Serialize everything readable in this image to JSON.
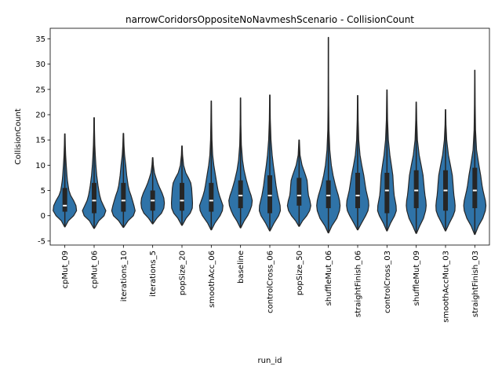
{
  "chart_data": {
    "type": "violin",
    "title": "narrowCoridorsOppositeNoNavmeshScenario - CollisionCount",
    "xlabel": "run_id",
    "ylabel": "CollisionCount",
    "ylim": [
      -5.8,
      37.1
    ],
    "yticks": [
      -5,
      0,
      5,
      10,
      15,
      20,
      25,
      30,
      35
    ],
    "grid": false,
    "legend": "none",
    "violin_color": "#2f73a8",
    "edge_color": "#262626",
    "categories": [
      {
        "label": "cpMut_09",
        "min": -2.2,
        "max": 16.2,
        "q1": 0.8,
        "median": 2.0,
        "q3": 5.5,
        "density": [
          [
            -2.2,
            0.02
          ],
          [
            -1,
            0.3
          ],
          [
            0,
            0.75
          ],
          [
            1,
            1.0
          ],
          [
            2,
            0.95
          ],
          [
            3,
            0.75
          ],
          [
            4,
            0.5
          ],
          [
            5,
            0.35
          ],
          [
            6,
            0.28
          ],
          [
            7,
            0.22
          ],
          [
            8,
            0.18
          ],
          [
            10,
            0.12
          ],
          [
            12,
            0.07
          ],
          [
            14,
            0.04
          ],
          [
            16.2,
            0.02
          ]
        ]
      },
      {
        "label": "cpMut_06",
        "min": -2.5,
        "max": 19.4,
        "q1": 0.5,
        "median": 3.0,
        "q3": 6.5,
        "density": [
          [
            -2.5,
            0.02
          ],
          [
            -1,
            0.4
          ],
          [
            0,
            0.85
          ],
          [
            1,
            1.0
          ],
          [
            2,
            0.8
          ],
          [
            3,
            0.6
          ],
          [
            4,
            0.48
          ],
          [
            5,
            0.4
          ],
          [
            6,
            0.33
          ],
          [
            8,
            0.22
          ],
          [
            10,
            0.15
          ],
          [
            12,
            0.1
          ],
          [
            14,
            0.06
          ],
          [
            17,
            0.03
          ],
          [
            19.4,
            0.02
          ]
        ]
      },
      {
        "label": "iterations_10",
        "min": -2.3,
        "max": 16.3,
        "q1": 0.8,
        "median": 3.0,
        "q3": 6.5,
        "density": [
          [
            -2.3,
            0.02
          ],
          [
            -1,
            0.4
          ],
          [
            0,
            0.85
          ],
          [
            1,
            1.0
          ],
          [
            2,
            0.9
          ],
          [
            3,
            0.78
          ],
          [
            4,
            0.65
          ],
          [
            5,
            0.5
          ],
          [
            6,
            0.4
          ],
          [
            8,
            0.28
          ],
          [
            10,
            0.2
          ],
          [
            12,
            0.1
          ],
          [
            14,
            0.05
          ],
          [
            16.3,
            0.02
          ]
        ]
      },
      {
        "label": "iterations_5",
        "min": -1.6,
        "max": 11.5,
        "q1": 1.0,
        "median": 3.0,
        "q3": 5.0,
        "density": [
          [
            -1.6,
            0.02
          ],
          [
            -0.5,
            0.35
          ],
          [
            0.5,
            0.75
          ],
          [
            1.5,
            0.95
          ],
          [
            2.5,
            1.0
          ],
          [
            3.5,
            0.95
          ],
          [
            4.5,
            0.8
          ],
          [
            5.5,
            0.6
          ],
          [
            6.5,
            0.42
          ],
          [
            7.5,
            0.28
          ],
          [
            8.5,
            0.15
          ],
          [
            10,
            0.06
          ],
          [
            11.5,
            0.02
          ]
        ]
      },
      {
        "label": "popSize_20",
        "min": -1.9,
        "max": 13.8,
        "q1": 1.0,
        "median": 3.0,
        "q3": 6.5,
        "density": [
          [
            -1.9,
            0.02
          ],
          [
            -0.5,
            0.35
          ],
          [
            0.5,
            0.7
          ],
          [
            1.5,
            0.88
          ],
          [
            2.5,
            0.9
          ],
          [
            3.5,
            0.88
          ],
          [
            4.5,
            0.85
          ],
          [
            5.5,
            0.82
          ],
          [
            6.5,
            0.75
          ],
          [
            7.5,
            0.55
          ],
          [
            8.5,
            0.32
          ],
          [
            10,
            0.14
          ],
          [
            12,
            0.05
          ],
          [
            13.8,
            0.02
          ]
        ]
      },
      {
        "label": "smoothAcc_06",
        "min": -2.8,
        "max": 22.7,
        "q1": 0.8,
        "median": 3.0,
        "q3": 6.5,
        "density": [
          [
            -2.8,
            0.02
          ],
          [
            -1.5,
            0.3
          ],
          [
            0,
            0.75
          ],
          [
            1,
            0.95
          ],
          [
            2,
            1.0
          ],
          [
            3,
            0.85
          ],
          [
            4,
            0.7
          ],
          [
            5,
            0.58
          ],
          [
            6,
            0.5
          ],
          [
            8,
            0.36
          ],
          [
            10,
            0.22
          ],
          [
            12,
            0.12
          ],
          [
            15,
            0.06
          ],
          [
            19,
            0.03
          ],
          [
            22.7,
            0.015
          ]
        ]
      },
      {
        "label": "baseline",
        "min": -2.4,
        "max": 23.3,
        "q1": 1.5,
        "median": 4.0,
        "q3": 7.0,
        "density": [
          [
            -2.4,
            0.02
          ],
          [
            -1,
            0.32
          ],
          [
            0,
            0.6
          ],
          [
            1,
            0.8
          ],
          [
            2,
            0.95
          ],
          [
            3,
            1.0
          ],
          [
            4,
            0.9
          ],
          [
            5,
            0.75
          ],
          [
            6,
            0.62
          ],
          [
            7,
            0.5
          ],
          [
            9,
            0.3
          ],
          [
            11,
            0.17
          ],
          [
            14,
            0.07
          ],
          [
            18,
            0.03
          ],
          [
            23.3,
            0.015
          ]
        ]
      },
      {
        "label": "controlCross_06",
        "min": -3.0,
        "max": 23.9,
        "q1": 0.5,
        "median": 4.0,
        "q3": 8.0,
        "density": [
          [
            -3,
            0.02
          ],
          [
            -1.5,
            0.35
          ],
          [
            0,
            0.75
          ],
          [
            1,
            0.9
          ],
          [
            2,
            0.88
          ],
          [
            3,
            0.78
          ],
          [
            4,
            0.68
          ],
          [
            5,
            0.6
          ],
          [
            6,
            0.53
          ],
          [
            8,
            0.42
          ],
          [
            10,
            0.3
          ],
          [
            12,
            0.2
          ],
          [
            15,
            0.1
          ],
          [
            19,
            0.04
          ],
          [
            23.9,
            0.015
          ]
        ]
      },
      {
        "label": "popSize_50",
        "min": -2.1,
        "max": 15.0,
        "q1": 2.0,
        "median": 4.0,
        "q3": 7.5,
        "density": [
          [
            -2.1,
            0.02
          ],
          [
            -1,
            0.3
          ],
          [
            0,
            0.65
          ],
          [
            1,
            0.9
          ],
          [
            2,
            1.0
          ],
          [
            3,
            0.92
          ],
          [
            4,
            0.8
          ],
          [
            5,
            0.75
          ],
          [
            6,
            0.72
          ],
          [
            7,
            0.68
          ],
          [
            8,
            0.55
          ],
          [
            9,
            0.4
          ],
          [
            10,
            0.25
          ],
          [
            12,
            0.08
          ],
          [
            15,
            0.02
          ]
        ]
      },
      {
        "label": "shuffleMut_06",
        "min": -3.4,
        "max": 35.3,
        "q1": 1.5,
        "median": 4.0,
        "q3": 7.0,
        "density": [
          [
            -3.4,
            0.02
          ],
          [
            -2,
            0.3
          ],
          [
            -0.5,
            0.72
          ],
          [
            1,
            0.95
          ],
          [
            2,
            1.0
          ],
          [
            3,
            0.95
          ],
          [
            4,
            0.85
          ],
          [
            5,
            0.72
          ],
          [
            6,
            0.6
          ],
          [
            8,
            0.4
          ],
          [
            10,
            0.25
          ],
          [
            13,
            0.12
          ],
          [
            17,
            0.05
          ],
          [
            22,
            0.025
          ],
          [
            28,
            0.015
          ],
          [
            35.3,
            0.01
          ]
        ]
      },
      {
        "label": "straightFinish_06",
        "min": -2.8,
        "max": 23.8,
        "q1": 1.5,
        "median": 4.0,
        "q3": 8.5,
        "density": [
          [
            -2.8,
            0.02
          ],
          [
            -1.5,
            0.32
          ],
          [
            0,
            0.68
          ],
          [
            1,
            0.88
          ],
          [
            2,
            0.95
          ],
          [
            3,
            0.92
          ],
          [
            4,
            0.82
          ],
          [
            5,
            0.72
          ],
          [
            6,
            0.65
          ],
          [
            8,
            0.52
          ],
          [
            10,
            0.35
          ],
          [
            12,
            0.2
          ],
          [
            15,
            0.09
          ],
          [
            19,
            0.04
          ],
          [
            23.8,
            0.015
          ]
        ]
      },
      {
        "label": "controlCross_03",
        "min": -3.0,
        "max": 24.9,
        "q1": 0.5,
        "median": 5.0,
        "q3": 8.5,
        "density": [
          [
            -3,
            0.02
          ],
          [
            -1.5,
            0.3
          ],
          [
            0,
            0.65
          ],
          [
            1,
            0.8
          ],
          [
            2,
            0.78
          ],
          [
            3,
            0.7
          ],
          [
            4,
            0.62
          ],
          [
            5,
            0.58
          ],
          [
            6,
            0.55
          ],
          [
            8,
            0.5
          ],
          [
            10,
            0.38
          ],
          [
            12,
            0.25
          ],
          [
            15,
            0.12
          ],
          [
            19,
            0.05
          ],
          [
            24.9,
            0.015
          ]
        ]
      },
      {
        "label": "shuffleMut_09",
        "min": -3.5,
        "max": 22.5,
        "q1": 1.5,
        "median": 5.0,
        "q3": 9.0,
        "density": [
          [
            -3.5,
            0.02
          ],
          [
            -2,
            0.3
          ],
          [
            -0.5,
            0.62
          ],
          [
            1,
            0.8
          ],
          [
            2,
            0.85
          ],
          [
            3,
            0.82
          ],
          [
            4,
            0.75
          ],
          [
            5,
            0.7
          ],
          [
            6,
            0.66
          ],
          [
            8,
            0.58
          ],
          [
            10,
            0.42
          ],
          [
            12,
            0.25
          ],
          [
            15,
            0.1
          ],
          [
            19,
            0.04
          ],
          [
            22.5,
            0.015
          ]
        ]
      },
      {
        "label": "smoothAccMut_03",
        "min": -3.0,
        "max": 21.0,
        "q1": 1.0,
        "median": 5.0,
        "q3": 9.0,
        "density": [
          [
            -3,
            0.02
          ],
          [
            -1.5,
            0.32
          ],
          [
            0,
            0.65
          ],
          [
            1,
            0.8
          ],
          [
            2,
            0.82
          ],
          [
            3,
            0.78
          ],
          [
            4,
            0.72
          ],
          [
            5,
            0.68
          ],
          [
            6,
            0.65
          ],
          [
            8,
            0.58
          ],
          [
            10,
            0.42
          ],
          [
            12,
            0.25
          ],
          [
            15,
            0.1
          ],
          [
            18,
            0.04
          ],
          [
            21,
            0.015
          ]
        ]
      },
      {
        "label": "straightFinish_03",
        "min": -3.7,
        "max": 28.8,
        "q1": 1.5,
        "median": 5.0,
        "q3": 9.5,
        "density": [
          [
            -3.7,
            0.02
          ],
          [
            -2,
            0.32
          ],
          [
            -0.5,
            0.68
          ],
          [
            1,
            0.9
          ],
          [
            2,
            0.95
          ],
          [
            3,
            0.9
          ],
          [
            4,
            0.8
          ],
          [
            5,
            0.7
          ],
          [
            6,
            0.62
          ],
          [
            8,
            0.5
          ],
          [
            10,
            0.35
          ],
          [
            13,
            0.15
          ],
          [
            17,
            0.06
          ],
          [
            22,
            0.03
          ],
          [
            28.8,
            0.01
          ]
        ]
      }
    ]
  }
}
